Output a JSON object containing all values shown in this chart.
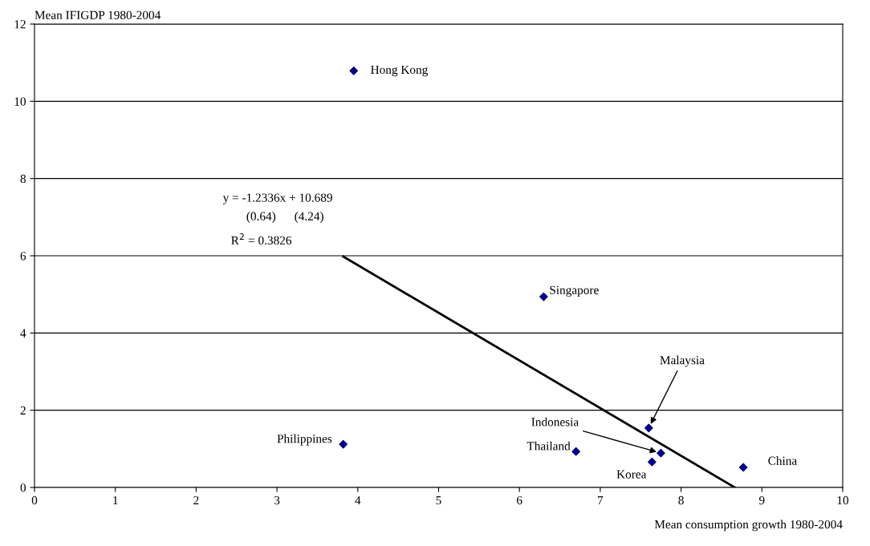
{
  "chart_data": {
    "type": "scatter",
    "xlabel": "Mean consumption growth 1980-2004",
    "ylabel": "Mean IFIGDP 1980-2004",
    "xlim": [
      0,
      10
    ],
    "xticks": [
      0,
      1,
      2,
      3,
      4,
      5,
      6,
      7,
      8,
      9,
      10
    ],
    "ylim": [
      0,
      12
    ],
    "yticks": [
      0,
      2,
      4,
      6,
      8,
      10,
      12
    ],
    "grid": "y",
    "series": [
      {
        "marker": "diamond",
        "color": "#000080",
        "x": [
          3.95,
          6.3,
          3.82,
          6.7,
          7.6,
          7.75,
          7.64,
          8.77
        ],
        "values": [
          10.79,
          4.94,
          1.12,
          0.93,
          1.54,
          0.89,
          0.66,
          0.52
        ]
      },
      {
        "type": "line",
        "marker": "none",
        "color": "#000000",
        "x": [
          3.82,
          8.665
        ],
        "values": [
          5.98,
          0.0
        ]
      }
    ],
    "annotations": [
      {
        "text": "Hong Kong",
        "x": 3.95,
        "y": 10.79
      },
      {
        "text": "Singapore",
        "x": 6.3,
        "y": 4.94
      },
      {
        "text": "Philippines",
        "x": 3.82,
        "y": 1.12
      },
      {
        "text": "Thailand",
        "x": 6.7,
        "y": 0.93
      },
      {
        "text": "Malaysia",
        "x": 7.6,
        "y": 1.54
      },
      {
        "text": "Indonesia",
        "x": 7.75,
        "y": 0.89
      },
      {
        "text": "Korea",
        "x": 7.64,
        "y": 0.66
      },
      {
        "text": "China",
        "x": 8.77,
        "y": 0.52
      },
      "y = -1.2336x + 10.689",
      "(0.64)      (4.24)",
      "R$^{2}$ = 0.3826"
    ]
  }
}
